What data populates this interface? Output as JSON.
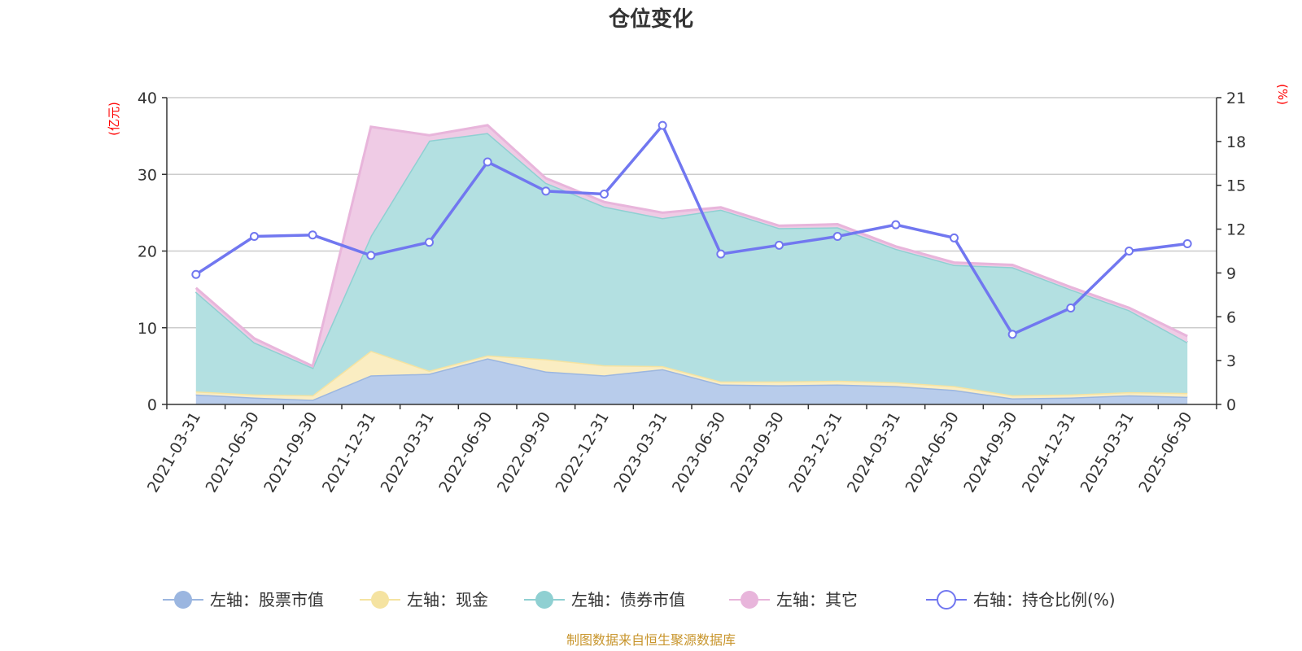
{
  "chart_data": {
    "type": "area",
    "title": "仓位变化",
    "left_unit": "(亿元)",
    "right_unit": "(%)",
    "left_ylim": [
      0,
      40
    ],
    "left_ticks": [
      0,
      10,
      20,
      30,
      40
    ],
    "right_ylim": [
      0,
      21
    ],
    "right_ticks": [
      0,
      3,
      6,
      9,
      12,
      15,
      18,
      21
    ],
    "grid": true,
    "legend_position": "bottom",
    "categories": [
      "2021-03-31",
      "2021-06-30",
      "2021-09-30",
      "2021-12-31",
      "2022-03-31",
      "2022-06-30",
      "2022-09-30",
      "2022-12-31",
      "2023-03-31",
      "2023-06-30",
      "2023-09-30",
      "2023-12-31",
      "2024-03-31",
      "2024-06-30",
      "2024-09-30",
      "2024-12-31",
      "2025-03-31",
      "2025-06-30"
    ],
    "series": [
      {
        "name": "左轴：股票市值",
        "axis": "left",
        "stack": true,
        "color": "#9bb6e0",
        "fill": "#b8cceb",
        "values": [
          1.3,
          0.9,
          0.6,
          3.8,
          4.0,
          6.0,
          4.3,
          3.8,
          4.6,
          2.6,
          2.5,
          2.6,
          2.4,
          1.9,
          0.8,
          0.9,
          1.2,
          1.0
        ]
      },
      {
        "name": "左轴：现金",
        "axis": "left",
        "stack": true,
        "color": "#f5e3a1",
        "fill": "#faedc2",
        "values": [
          0.4,
          0.4,
          0.6,
          3.2,
          0.4,
          0.4,
          1.6,
          1.3,
          0.4,
          0.4,
          0.5,
          0.5,
          0.5,
          0.5,
          0.4,
          0.4,
          0.4,
          0.5
        ]
      },
      {
        "name": "左轴：债券市值",
        "axis": "left",
        "stack": true,
        "color": "#8fd0d2",
        "fill": "#b3e0e1",
        "values": [
          13.0,
          6.8,
          3.6,
          15.0,
          30.0,
          29.0,
          23.0,
          20.7,
          19.3,
          22.4,
          20.0,
          20.0,
          17.4,
          15.8,
          16.7,
          13.7,
          10.7,
          6.6
        ]
      },
      {
        "name": "左轴：其它",
        "axis": "left",
        "stack": true,
        "color": "#e8b5db",
        "fill": "#efcbe5",
        "values": [
          0.5,
          0.5,
          0.2,
          14.2,
          0.7,
          1.0,
          0.6,
          0.6,
          0.7,
          0.3,
          0.3,
          0.4,
          0.3,
          0.3,
          0.3,
          0.3,
          0.3,
          0.8
        ]
      },
      {
        "name": "右轴：持仓比例(%)",
        "axis": "right",
        "type": "line",
        "color": "#7177f0",
        "values": [
          8.9,
          11.5,
          11.6,
          10.2,
          11.1,
          16.6,
          14.6,
          14.4,
          19.1,
          10.3,
          10.9,
          11.5,
          12.3,
          11.4,
          4.8,
          6.6,
          10.5,
          11.0
        ]
      }
    ]
  },
  "source_note": "制图数据来自恒生聚源数据库",
  "colors": {
    "unit_label": "#ff0000",
    "source_note": "#c8952c",
    "axis": "#333333",
    "grid": "#cccccc"
  }
}
